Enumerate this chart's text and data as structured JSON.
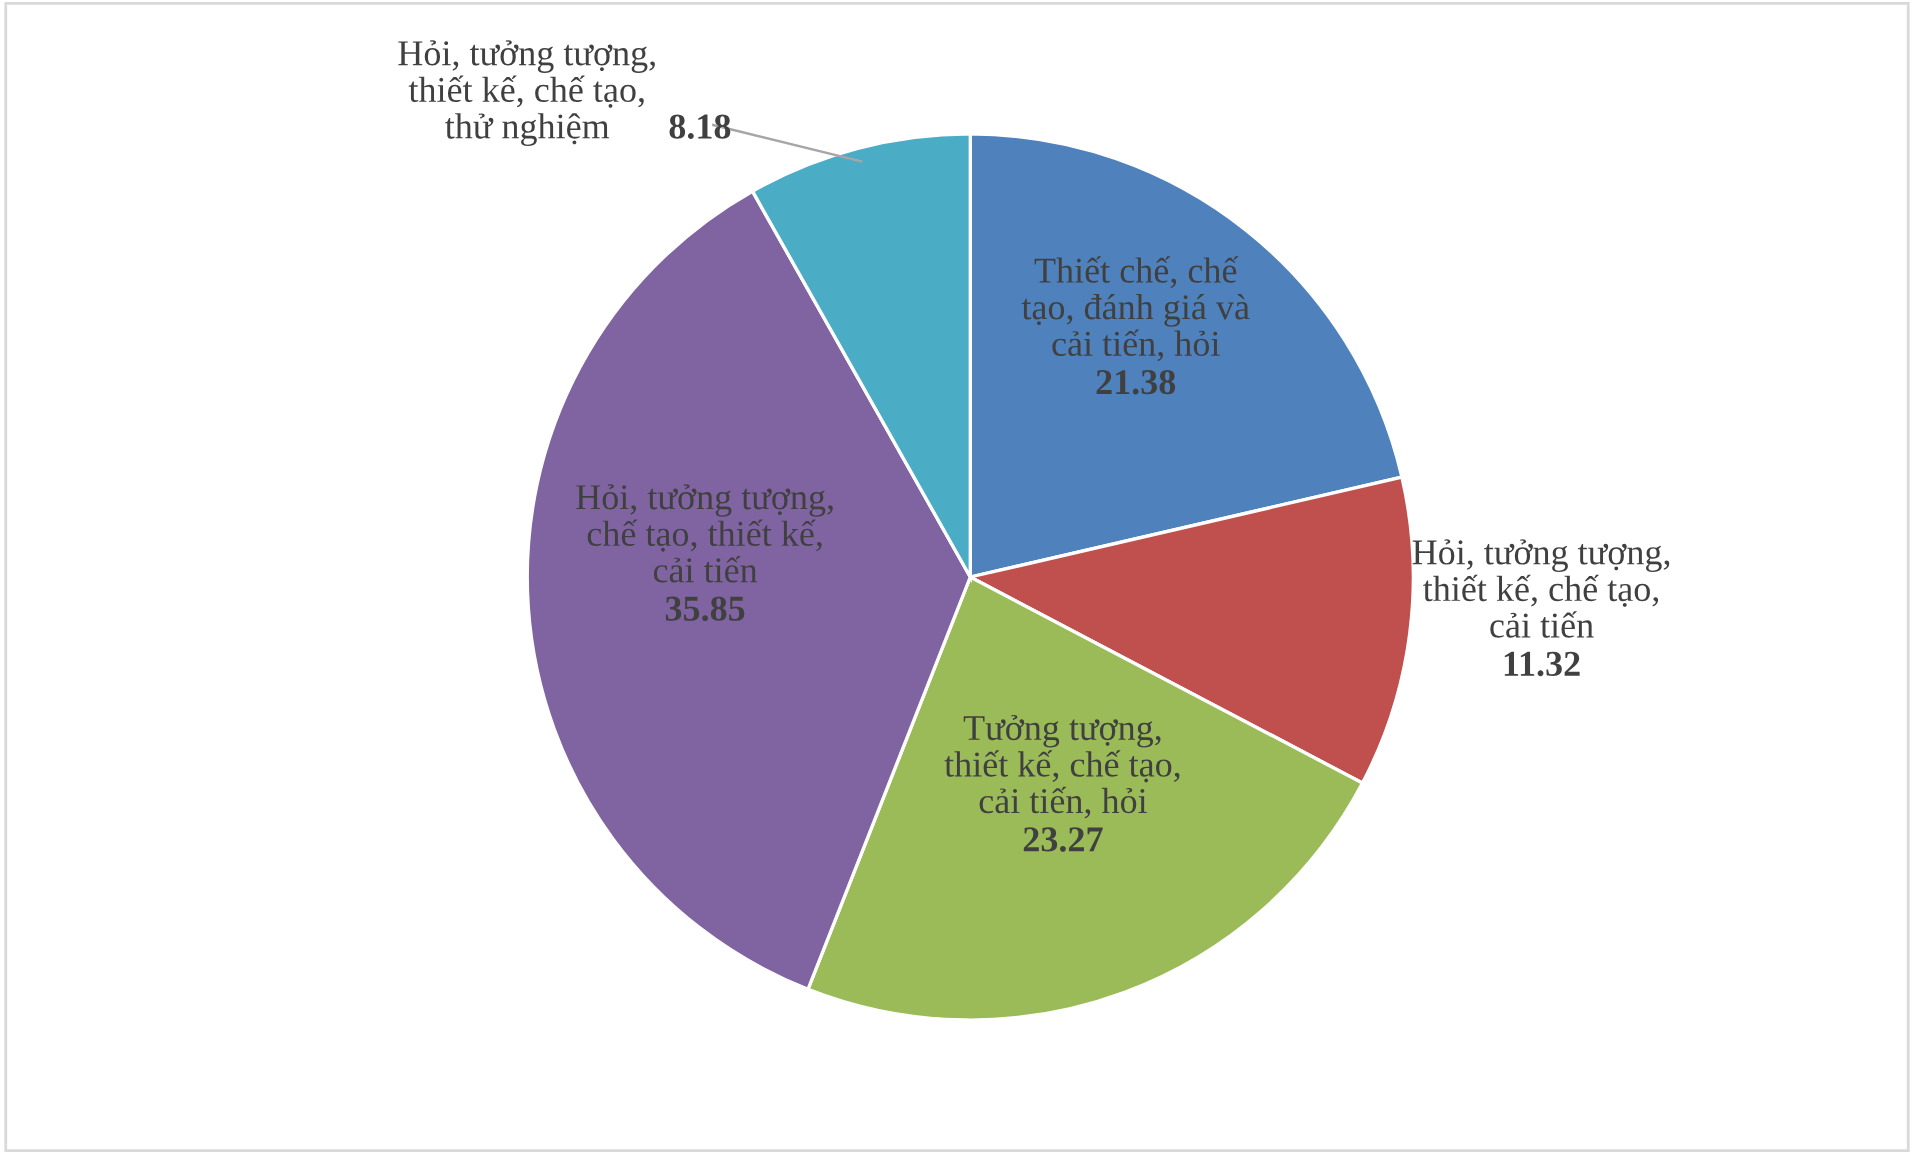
{
  "chart_data": {
    "type": "pie",
    "categories": [
      "Thiết chế, chế\ntạo, đánh giá và\ncải tiến, hỏi",
      "Hỏi, tưởng tượng,\nthiết kế, chế tạo,\ncải tiến",
      "Tưởng tượng,\nthiết kế, chế tạo,\ncải tiến, hỏi",
      "Hỏi, tưởng tượng,\nchế tạo, thiết kế,\ncải tiến",
      "Hỏi, tưởng tượng,\nthiết kế, chế tạo,\nthử nghiệm"
    ],
    "values": [
      21.38,
      11.32,
      23.27,
      35.85,
      8.18
    ],
    "colors": [
      "#4f81bd",
      "#c0504d",
      "#9bbb59",
      "#8064a2",
      "#4bacc6"
    ],
    "data_labels": true,
    "legend": false
  }
}
